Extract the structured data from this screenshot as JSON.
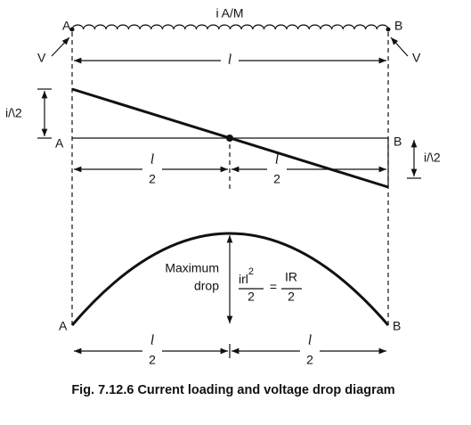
{
  "top": {
    "label_a": "A",
    "label_b": "B",
    "loading": "i A/M",
    "voltage_left": "V",
    "voltage_right": "V",
    "length": "l"
  },
  "current": {
    "label_a": "A",
    "label_b": "B",
    "left_value": "i/\\2",
    "right_value": "i/\\2",
    "half_left": {
      "num": "l",
      "den": "2"
    },
    "half_right": {
      "num": "l",
      "den": "2"
    }
  },
  "drop": {
    "label_a": "A",
    "label_b": "B",
    "maximum": "Maximum",
    "drop": "drop",
    "formula": {
      "lhs_num": "irl",
      "lhs_exp": "2",
      "lhs_den": "2",
      "equals": "=",
      "rhs_num": "IR",
      "rhs_den": "2"
    },
    "half_left": {
      "num": "l",
      "den": "2"
    },
    "half_right": {
      "num": "l",
      "den": "2"
    }
  },
  "caption": "Fig. 7.12.6 Current loading and voltage drop diagram"
}
